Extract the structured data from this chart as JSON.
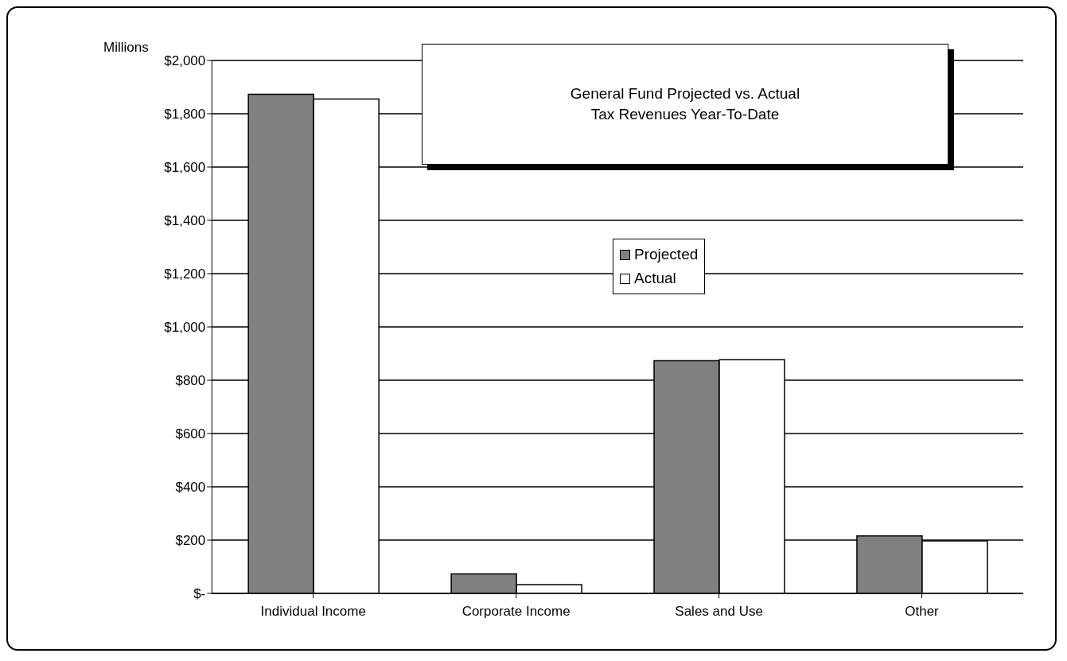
{
  "chart_data": {
    "type": "bar",
    "title": "General Fund Projected vs. Actual\nTax Revenues Year-To-Date",
    "ylabel": "Millions",
    "categories": [
      "Individual Income",
      "Corporate Income",
      "Sales and Use",
      "Other"
    ],
    "series": [
      {
        "name": "Projected",
        "color": "#808080",
        "values": [
          1873,
          73,
          873,
          216
        ]
      },
      {
        "name": "Actual",
        "color": "#ffffff",
        "values": [
          1855,
          33,
          877,
          197
        ]
      }
    ],
    "ylim": [
      0,
      2000
    ],
    "yticks": [
      {
        "value": 0,
        "label": "$-"
      },
      {
        "value": 200,
        "label": "$200"
      },
      {
        "value": 400,
        "label": "$400"
      },
      {
        "value": 600,
        "label": "$600"
      },
      {
        "value": 800,
        "label": "$800"
      },
      {
        "value": 1000,
        "label": "$1,000"
      },
      {
        "value": 1200,
        "label": "$1,200"
      },
      {
        "value": 1400,
        "label": "$1,400"
      },
      {
        "value": 1600,
        "label": "$1,600"
      },
      {
        "value": 1800,
        "label": "$1,800"
      },
      {
        "value": 2000,
        "label": "$2,000"
      }
    ],
    "grid": "y",
    "legend": "top"
  }
}
